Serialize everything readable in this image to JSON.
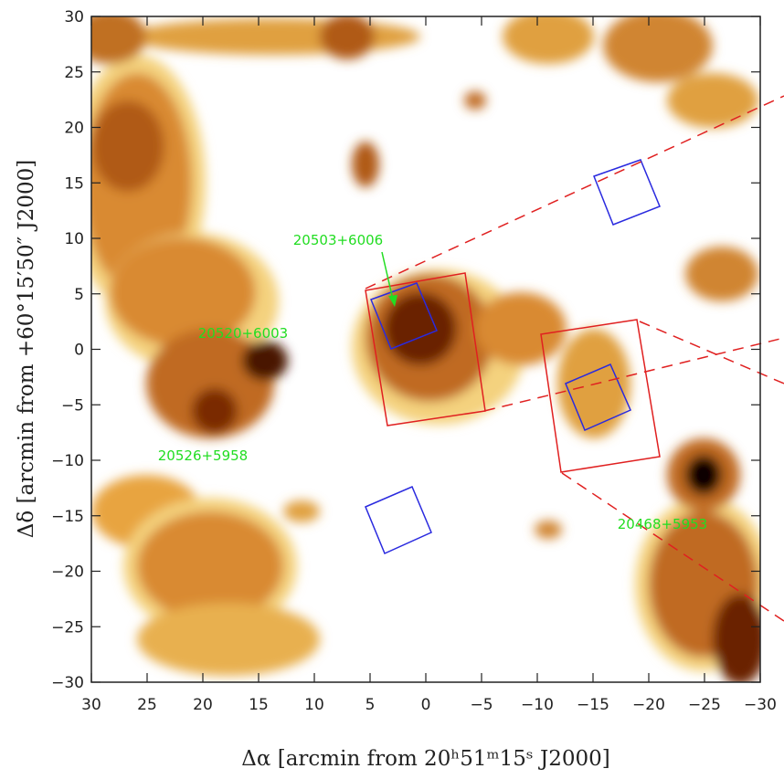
{
  "chart_data": {
    "type": "map",
    "xlabel": "Δα [arcmin from 20ʰ51ᵐ15ˢ J2000]",
    "ylabel": "Δδ [arcmin from +60°15′50″ J2000]",
    "xlim": [
      30,
      -30
    ],
    "xticks": [
      30,
      25,
      20,
      15,
      10,
      5,
      0,
      {
        "value": -5,
        "label": "−5"
      },
      {
        "value": -10,
        "label": "−10"
      },
      {
        "value": -15,
        "label": "−15"
      },
      {
        "value": -20,
        "label": "−20"
      },
      {
        "value": -25,
        "label": "−25"
      },
      {
        "value": -30,
        "label": "−30"
      }
    ],
    "ylim": [
      -30,
      30
    ],
    "yticks": [
      {
        "value": -30,
        "label": "−30"
      },
      {
        "value": -25,
        "label": "−25"
      },
      {
        "value": -20,
        "label": "−20"
      },
      {
        "value": -15,
        "label": "−15"
      },
      {
        "value": -10,
        "label": "−10"
      },
      {
        "value": -5,
        "label": "−5"
      },
      0,
      5,
      10,
      15,
      20,
      25,
      30
    ],
    "annotations": [
      "20503+6006",
      "20520+6003",
      "20526+5958",
      "20468+5953"
    ],
    "annotation_color": "#22dd22"
  }
}
